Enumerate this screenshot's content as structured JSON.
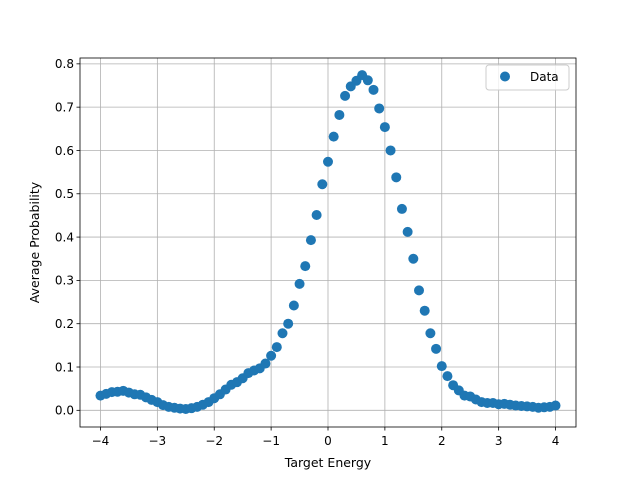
{
  "chart_data": {
    "type": "scatter",
    "title": "",
    "xlabel": "Target Energy",
    "ylabel": "Average Probability",
    "xlim": [
      -4.36,
      4.36
    ],
    "ylim": [
      -0.0385,
      0.8135
    ],
    "xticks": [
      -4,
      -3,
      -2,
      -1,
      0,
      1,
      2,
      3,
      4
    ],
    "xtick_labels": [
      "−4",
      "−3",
      "−2",
      "−1",
      "0",
      "1",
      "2",
      "3",
      "4"
    ],
    "yticks": [
      0.0,
      0.1,
      0.2,
      0.3,
      0.4,
      0.5,
      0.6,
      0.7,
      0.8
    ],
    "ytick_labels": [
      "0.0",
      "0.1",
      "0.2",
      "0.3",
      "0.4",
      "0.5",
      "0.6",
      "0.7",
      "0.8"
    ],
    "grid": true,
    "legend_position": "top-right",
    "series": [
      {
        "name": "Data",
        "color": "#1f77b4",
        "marker": "circle",
        "x": [
          -4.0,
          -3.9,
          -3.8,
          -3.7,
          -3.6,
          -3.5,
          -3.4,
          -3.3,
          -3.2,
          -3.1,
          -3.0,
          -2.9,
          -2.8,
          -2.7,
          -2.6,
          -2.5,
          -2.4,
          -2.3,
          -2.2,
          -2.1,
          -2.0,
          -1.9,
          -1.8,
          -1.7,
          -1.6,
          -1.5,
          -1.4,
          -1.3,
          -1.2,
          -1.1,
          -1.0,
          -0.9,
          -0.8,
          -0.7,
          -0.6,
          -0.5,
          -0.4,
          -0.3,
          -0.2,
          -0.1,
          0.0,
          0.1,
          0.2,
          0.3,
          0.4,
          0.5,
          0.6,
          0.7,
          0.8,
          0.9,
          1.0,
          1.1,
          1.2,
          1.3,
          1.4,
          1.5,
          1.6,
          1.7,
          1.8,
          1.9,
          2.0,
          2.1,
          2.2,
          2.3,
          2.4,
          2.5,
          2.6,
          2.7,
          2.8,
          2.9,
          3.0,
          3.1,
          3.2,
          3.3,
          3.4,
          3.5,
          3.6,
          3.7,
          3.8,
          3.9,
          4.0
        ],
        "y": [
          0.034,
          0.038,
          0.042,
          0.043,
          0.045,
          0.041,
          0.037,
          0.036,
          0.03,
          0.024,
          0.019,
          0.012,
          0.008,
          0.006,
          0.004,
          0.003,
          0.005,
          0.008,
          0.013,
          0.019,
          0.028,
          0.037,
          0.048,
          0.059,
          0.065,
          0.074,
          0.086,
          0.092,
          0.097,
          0.108,
          0.126,
          0.146,
          0.178,
          0.2,
          0.242,
          0.292,
          0.333,
          0.393,
          0.451,
          0.522,
          0.574,
          0.632,
          0.682,
          0.726,
          0.748,
          0.761,
          0.774,
          0.762,
          0.74,
          0.697,
          0.654,
          0.6,
          0.538,
          0.465,
          0.412,
          0.35,
          0.277,
          0.23,
          0.178,
          0.142,
          0.102,
          0.079,
          0.058,
          0.046,
          0.034,
          0.032,
          0.025,
          0.019,
          0.017,
          0.017,
          0.014,
          0.015,
          0.013,
          0.011,
          0.01,
          0.009,
          0.008,
          0.006,
          0.007,
          0.008,
          0.011
        ]
      }
    ]
  }
}
